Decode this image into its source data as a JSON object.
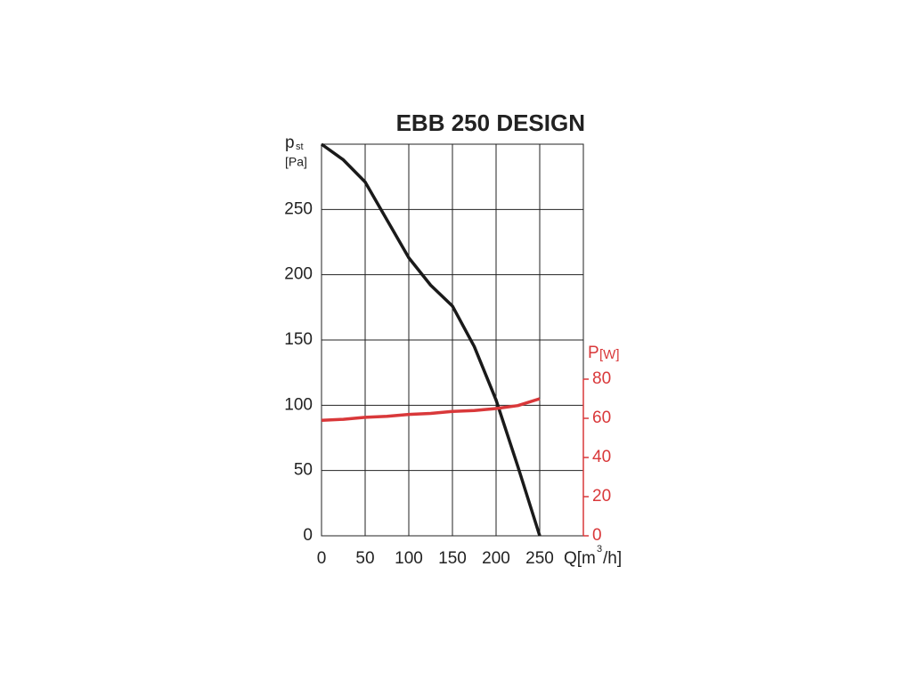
{
  "chart_data": {
    "type": "line",
    "title": "EBB 250 DESIGN",
    "y_label_symbol": "p",
    "y_label_subscript": "st",
    "y_label_unit": "[Pa]",
    "y2_label_symbol": "P",
    "y2_label_unit": "[W]",
    "x_label_start": "Q[m",
    "x_label_superscript": "3",
    "x_label_end": "/h]",
    "x": [
      0,
      25,
      50,
      75,
      100,
      125,
      150,
      175,
      200,
      225,
      250
    ],
    "series": [
      {
        "name": "pst",
        "color": "#1a1a1a",
        "values": [
          300,
          288,
          271,
          242,
          213,
          192,
          176,
          145,
          104,
          53,
          0
        ]
      },
      {
        "name": "P",
        "color": "#d9383a",
        "axis": "y2",
        "values": [
          59,
          59.5,
          60.5,
          61,
          62,
          62.5,
          63.5,
          64,
          65,
          66.5,
          70
        ]
      }
    ],
    "xlim": [
      0,
      300
    ],
    "xticks": [
      0,
      50,
      100,
      150,
      200,
      250
    ],
    "ylim": [
      0,
      300
    ],
    "yticks": [
      0,
      50,
      100,
      150,
      200,
      250
    ],
    "y2lim": [
      0,
      200
    ],
    "y2ticks": [
      0,
      20,
      40,
      60,
      80
    ],
    "grid": true
  }
}
